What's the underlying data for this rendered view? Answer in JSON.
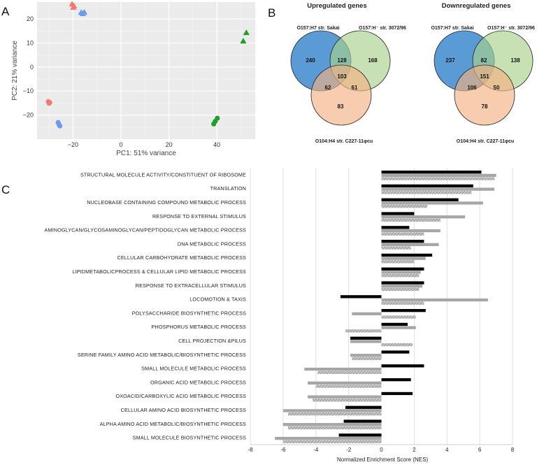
{
  "panel_labels": {
    "a": "A",
    "b": "B",
    "c": "C"
  },
  "colors": {
    "red": "#f07a70",
    "blue": "#6b9bf0",
    "green": "#1f9e2a",
    "venn_blue": "#5b9bd5",
    "venn_green": "#a9d18e",
    "venn_orange": "#f4b183",
    "bar_black": "#000000",
    "bar_gray": "#a6a6a6"
  },
  "chart_data": [
    {
      "type": "scatter",
      "title": "",
      "xlabel": "PC1: 51% variance",
      "ylabel": "PC2: 21% variance",
      "xlim": [
        -35,
        56
      ],
      "ylim": [
        -30,
        27
      ],
      "xticks": [
        -20,
        0,
        20,
        40
      ],
      "yticks": [
        -20,
        -10,
        0,
        10,
        20
      ],
      "series": [
        {
          "name": "O157:H7 str. Sakai",
          "color": "red",
          "shape": "triangle",
          "points": [
            [
              -20.4,
              26.2
            ],
            [
              -19.6,
              25.4
            ],
            [
              -19.9,
              24.8
            ]
          ]
        },
        {
          "name": "O157:H7 str. Sakai",
          "color": "red",
          "shape": "circle",
          "points": [
            [
              -30.3,
              -14.4
            ],
            [
              -29.7,
              -14.8
            ],
            [
              -30.0,
              -15.1
            ]
          ]
        },
        {
          "name": "O157:H- str. 3072/96",
          "color": "blue",
          "shape": "triangle",
          "points": [
            [
              -16.6,
              22.7
            ],
            [
              -15.9,
              22.2
            ],
            [
              -15.3,
              22.8
            ]
          ]
        },
        {
          "name": "O157:H- str. 3072/96",
          "color": "blue",
          "shape": "circle",
          "points": [
            [
              -26.2,
              -23.1
            ],
            [
              -25.8,
              -24.1
            ],
            [
              -25.5,
              -24.5
            ]
          ]
        },
        {
          "name": "O104:H4 str. C227-11φcu",
          "color": "green",
          "shape": "triangle",
          "points": [
            [
              52.3,
              14.3
            ],
            [
              51.0,
              10.8
            ]
          ]
        },
        {
          "name": "O104:H4 str. C227-11φcu",
          "color": "green",
          "shape": "circle",
          "points": [
            [
              40.2,
              -21.3
            ],
            [
              39.3,
              -22.6
            ],
            [
              38.7,
              -23.7
            ]
          ]
        }
      ]
    },
    {
      "type": "venn",
      "title": "Upregulated genes",
      "sets": [
        "O157:H7 str. Sakai",
        "O157:H⁻ str. 3072/96",
        "O104:H4  str. C227-11φcu"
      ],
      "regions": {
        "a_only": "240",
        "b_only": "168",
        "c_only": "83",
        "ab": "128",
        "ac": "62",
        "bc": "61",
        "abc": "103"
      }
    },
    {
      "type": "venn",
      "title": "Downregulated genes",
      "sets": [
        "O157:H7 str. Sakai",
        "O157:H⁻ str. 3072/96",
        "O104:H4  str. C227-11φcu"
      ],
      "regions": {
        "a_only": "237",
        "b_only": "138",
        "c_only": "78",
        "ab": "82",
        "ac": "106",
        "bc": "50",
        "abc": "151"
      }
    },
    {
      "type": "bar",
      "orientation": "horizontal",
      "xlabel": "Normalized Enrichment Score (NES)",
      "xlim": [
        -8,
        8
      ],
      "xticks": [
        -8,
        -6,
        -4,
        -2,
        0,
        2,
        4,
        6,
        8
      ],
      "series_names": [
        "black",
        "gray",
        "hatched"
      ],
      "categories": [
        "STRUCTURAL MOLECULE ACTIVITY/CONSTITUENT OF RIBOSOME",
        "TRANSLATION",
        "NUCLEOBASE CONTAINING COMPOUND METABOLIC PROCESS",
        "RESPONSE TO EXTERNAL STIMULUS",
        "AMINOGLYCAN/GLYCOSAMINOGLYCAN/PEPTIDOGLYCAN METABOLIC PROCESS",
        "DNA METABOLIC PROCESS",
        "CELLULAR CARBOHYDRATE METABOLIC PROCESS",
        "LIPIDMETABOLICPROCESS & CELLULAR LIPID METABOLIC PROCESS",
        "RESPONSE TO EXTRACELLULAR STIMULUS",
        "LOCOMOTION & TAXIS",
        "POLYSACCHARIDE BIOSYNTHETIC PROCESS",
        "PHOSPHORUS METABOLIC PROCESS",
        "CELL PROJECTION &PILUS",
        "SERINE FAMILY AMINO ACID METABOLIC/BIOSYNTHETIC PROCESS",
        "SMALL MOLECULE METABOLIC PROCESS",
        "ORGANIC ACID METABOLIC PROCESS",
        "OXOACID/CARBOXYLIC ACID METABOLIC PROCESS",
        "CELLULAR AMINO ACID BIOSYNTHETIC PROCESS",
        "ALPHA AMINO ACID METABOLIC/BIOSYNTHETIC PROCESS",
        "SMALL MOLECULE BIOSYNTHETIC PROCESS"
      ],
      "series": [
        {
          "name": "black",
          "values": [
            6.1,
            5.6,
            4.7,
            2.0,
            1.7,
            2.6,
            3.1,
            2.6,
            2.6,
            -2.5,
            2.7,
            1.6,
            -1.9,
            1.7,
            2.6,
            1.8,
            1.9,
            -2.2,
            -2.3,
            -2.6
          ]
        },
        {
          "name": "gray",
          "values": [
            7.0,
            6.9,
            6.2,
            5.1,
            3.6,
            3.5,
            2.7,
            2.4,
            2.5,
            6.5,
            -1.8,
            2.1,
            -1.9,
            -1.9,
            -4.7,
            -4.5,
            -4.5,
            -6.0,
            -6.0,
            -6.5
          ]
        },
        {
          "name": "hatched",
          "values": [
            6.9,
            5.5,
            2.8,
            3.6,
            2.6,
            1.8,
            2.0,
            2.3,
            2.3,
            2.6,
            2.1,
            -2.2,
            1.9,
            -1.8,
            -3.9,
            -4.0,
            -4.2,
            -5.7,
            -5.7,
            -6.0
          ]
        }
      ]
    }
  ]
}
